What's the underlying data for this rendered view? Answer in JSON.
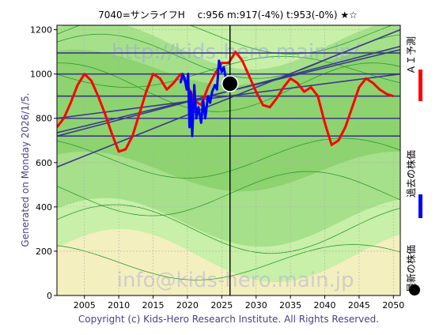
{
  "chart_data": {
    "type": "line",
    "title": "7040=サンライフH　 c:956  m:917(-4%)  t:953(-0%)  ★☆",
    "side_label": "Generated on Monday 2026/1/5.",
    "copyright": "Copyright (c) Kids-Hero Research Institute. All Rights Reserved.",
    "watermarks": [
      "http://kids-hero.main.jp/",
      "info@kids-hero.main.jp"
    ],
    "xlim": [
      2001,
      2051
    ],
    "ylim": [
      0,
      1220
    ],
    "x_ticks": [
      2005,
      2010,
      2015,
      2020,
      2025,
      2030,
      2035,
      2040,
      2045,
      2050
    ],
    "y_ticks": [
      0,
      200,
      400,
      600,
      800,
      1000,
      1200
    ],
    "grid": true,
    "current_marker": {
      "x": 2026.2,
      "y": 956,
      "label": "最新の株価"
    },
    "current_vline_x": 2026.2,
    "horizontal_levels": [
      1095,
      1000,
      900,
      800,
      720
    ],
    "trend_lines": [
      {
        "x": [
          2001,
          2051
        ],
        "y": [
          720,
          1125
        ]
      },
      {
        "x": [
          2001,
          2051
        ],
        "y": [
          735,
          1110
        ]
      },
      {
        "x": [
          2001,
          2051
        ],
        "y": [
          580,
          1200
        ]
      },
      {
        "x": [
          2001,
          2051
        ],
        "y": [
          800,
          1000
        ]
      },
      {
        "x": [
          2001,
          2051
        ],
        "y": [
          900,
          900
        ]
      }
    ],
    "series": [
      {
        "name": "ＡＩ予測",
        "color": "#ff0000",
        "x": [
          2001,
          2002,
          2003,
          2004,
          2005,
          2006,
          2007,
          2008,
          2009,
          2010,
          2011,
          2012,
          2013,
          2014,
          2015,
          2016,
          2017,
          2018,
          2019,
          2020,
          2021,
          2022,
          2023,
          2024,
          2025,
          2026,
          2027,
          2028,
          2029,
          2030,
          2031,
          2032,
          2033,
          2034,
          2035,
          2036,
          2037,
          2038,
          2039,
          2040,
          2041,
          2042,
          2043,
          2044,
          2045,
          2046,
          2047,
          2048,
          2049,
          2050
        ],
        "y": [
          760,
          800,
          870,
          950,
          1000,
          970,
          900,
          820,
          730,
          650,
          660,
          720,
          820,
          920,
          1000,
          980,
          930,
          960,
          1000,
          950,
          880,
          860,
          940,
          1000,
          1050,
          1050,
          1100,
          1060,
          990,
          920,
          860,
          850,
          890,
          940,
          980,
          960,
          920,
          940,
          900,
          780,
          680,
          700,
          760,
          850,
          940,
          980,
          960,
          930,
          910,
          900
        ]
      },
      {
        "name": "過去の株価",
        "color": "#0000ff",
        "x": [
          2019.0,
          2019.3,
          2019.6,
          2019.9,
          2020.1,
          2020.3,
          2020.5,
          2020.7,
          2021.0,
          2021.3,
          2021.6,
          2022.0,
          2022.3,
          2022.6,
          2023.0,
          2023.3,
          2023.6,
          2024.0,
          2024.3,
          2024.6,
          2025.0,
          2025.3,
          2025.6,
          2025.9
        ],
        "y": [
          960,
          1000,
          980,
          930,
          1000,
          760,
          920,
          720,
          950,
          800,
          850,
          780,
          880,
          800,
          900,
          870,
          920,
          950,
          930,
          1060,
          1010,
          1030,
          980,
          956
        ]
      }
    ],
    "legend": [
      "ＡＩ予測",
      "過去の株価",
      "最新の株価"
    ],
    "legend_placement": "right"
  }
}
